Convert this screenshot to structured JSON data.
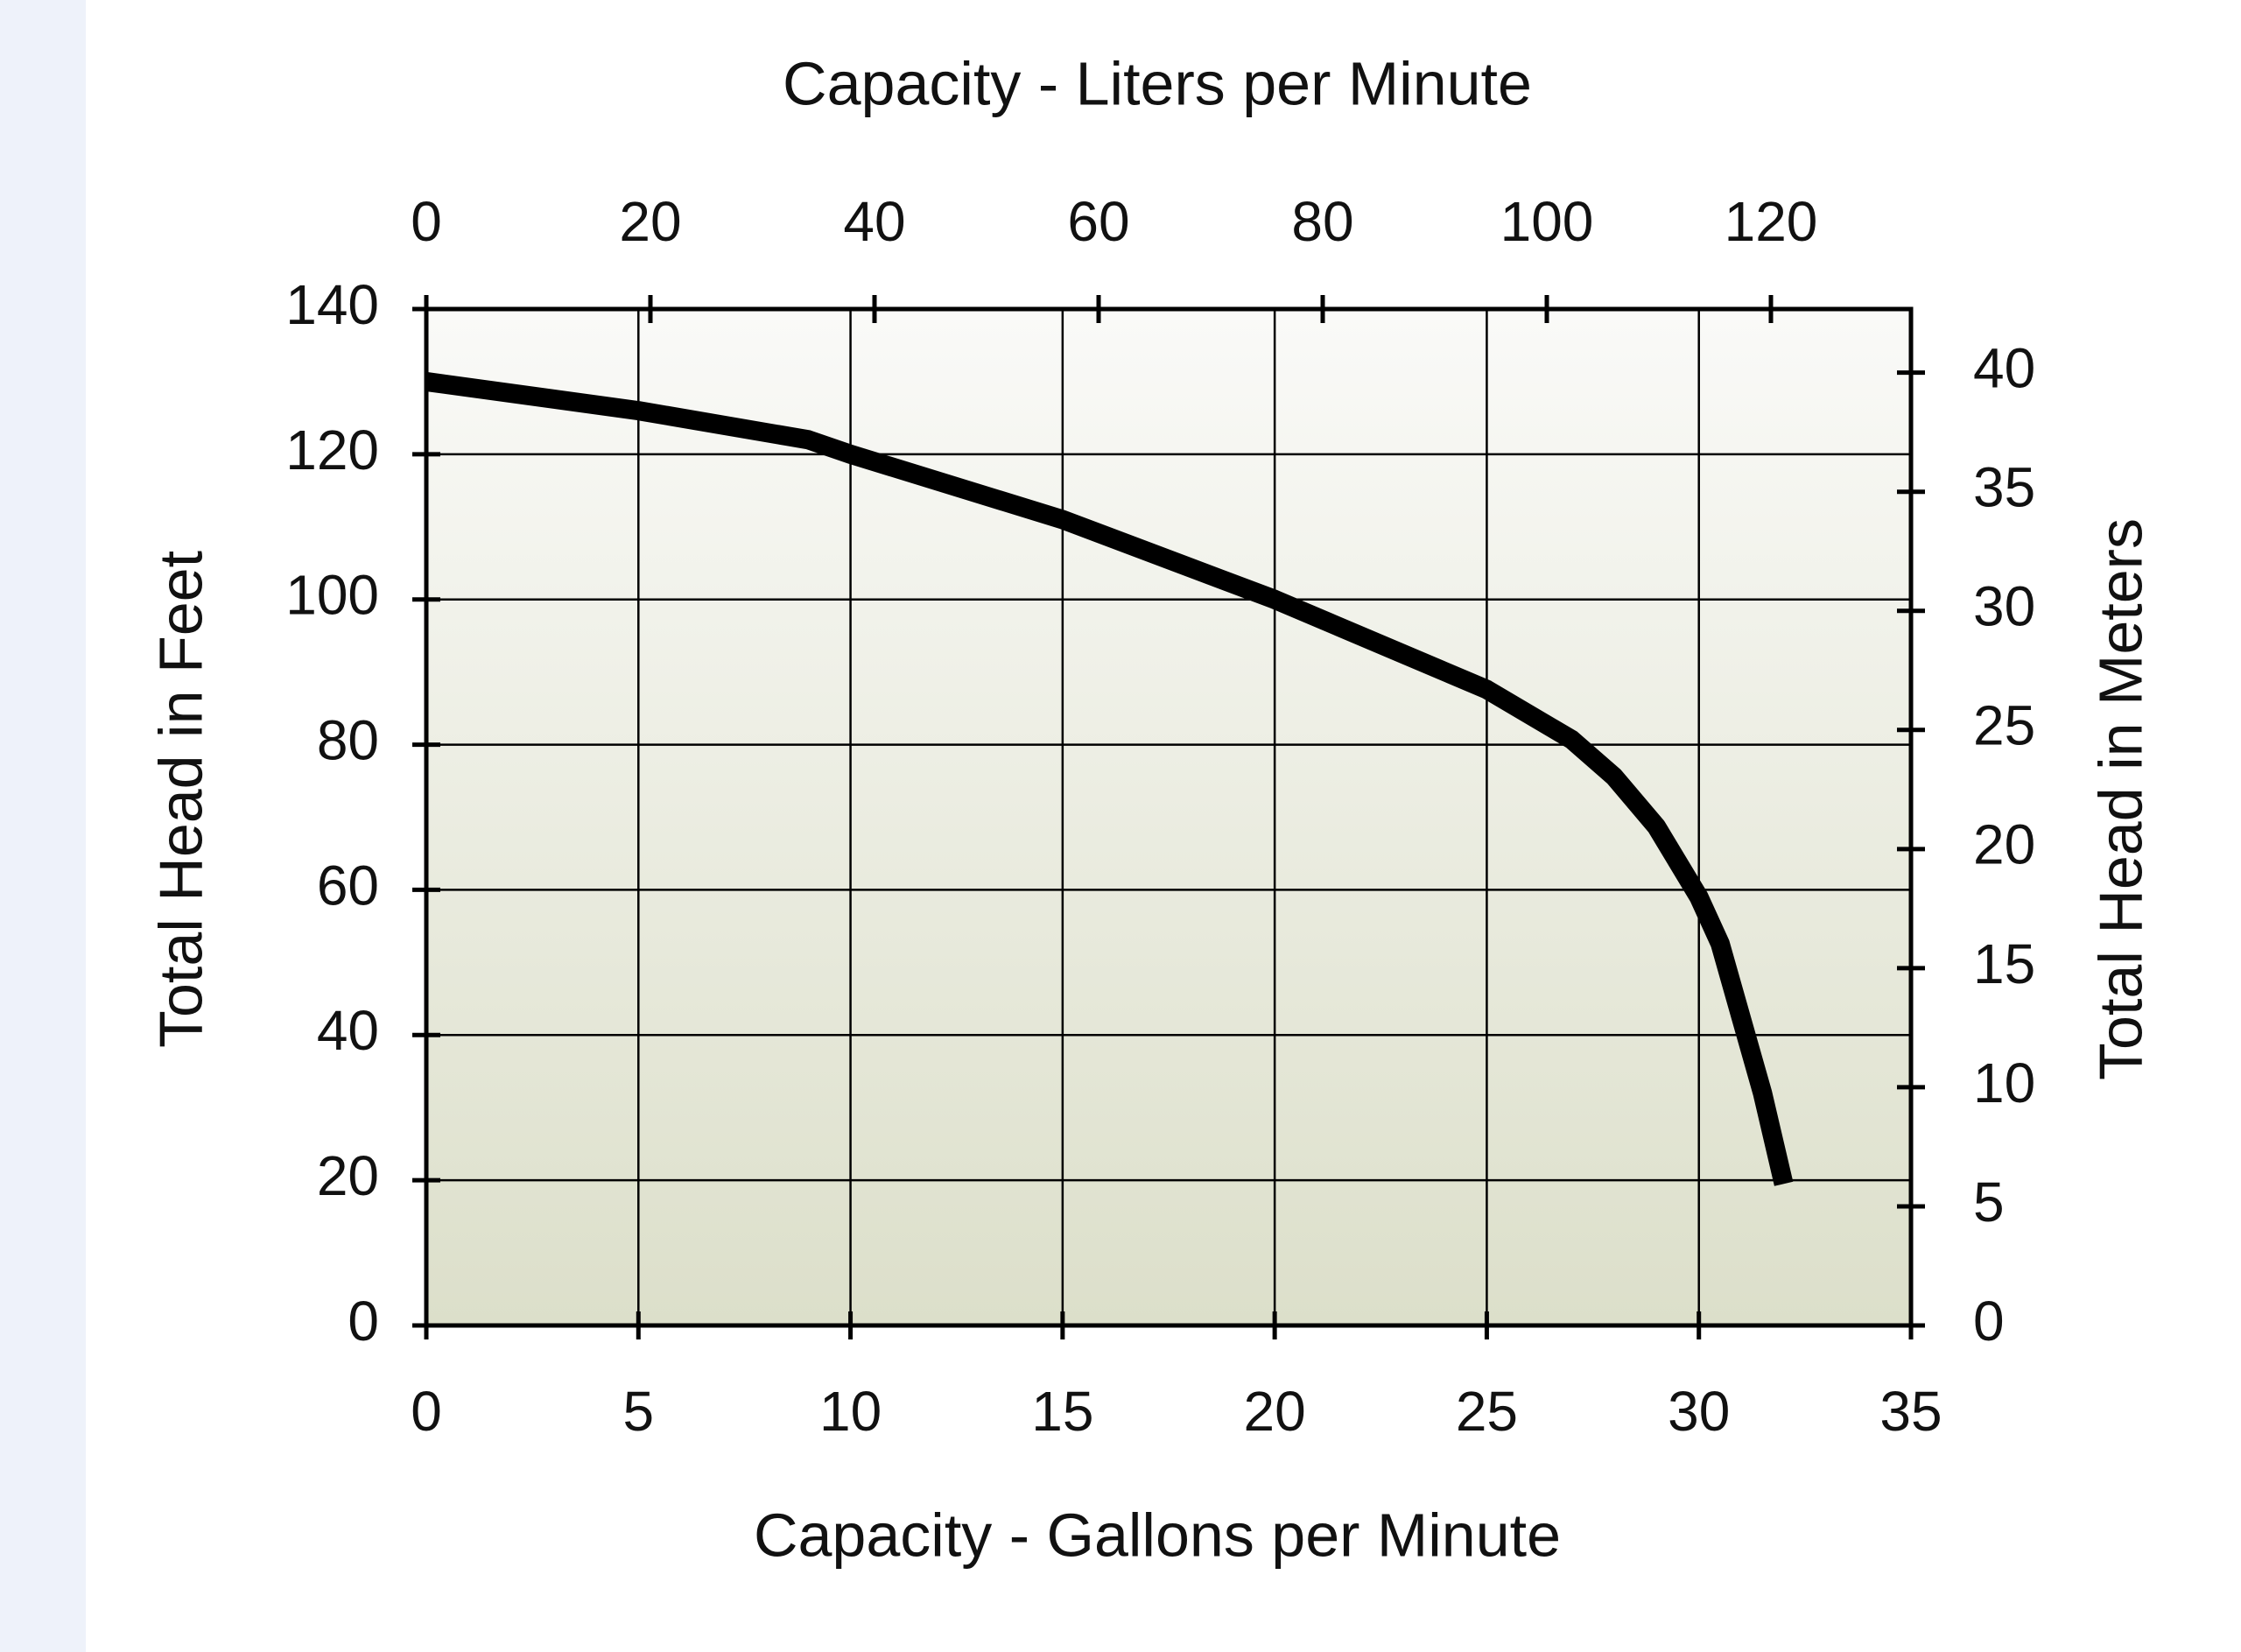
{
  "chart_data": {
    "type": "line",
    "x2label": "Capacity - Liters per Minute",
    "xlabel": "Capacity - Gallons per Minute",
    "ylabel": "Total Head in Feet",
    "y2label": "Total Head in Meters",
    "x": [
      0,
      5,
      9,
      10,
      15,
      20,
      25,
      27,
      28,
      29,
      30,
      30.5,
      31,
      31.5,
      32
    ],
    "series": [
      {
        "color": "#000000",
        "values": [
          130,
          126,
          122,
          120,
          111,
          100,
          87.6,
          80.7,
          75.6,
          68.7,
          59,
          52.6,
          42.3,
          32,
          19.5
        ]
      }
    ],
    "xlim": [
      0,
      35
    ],
    "xticks": [
      0,
      5,
      10,
      15,
      20,
      25,
      30,
      35
    ],
    "ylim": [
      0,
      140
    ],
    "yticks": [
      0,
      20,
      40,
      60,
      80,
      100,
      120,
      140
    ],
    "x2lim": [
      0,
      132.5
    ],
    "x2ticks": [
      0,
      20,
      40,
      60,
      80,
      100,
      120
    ],
    "y2lim": [
      0,
      42.67
    ],
    "y2ticks": [
      0,
      5,
      10,
      15,
      20,
      25,
      30,
      35,
      40
    ],
    "grid": true
  }
}
